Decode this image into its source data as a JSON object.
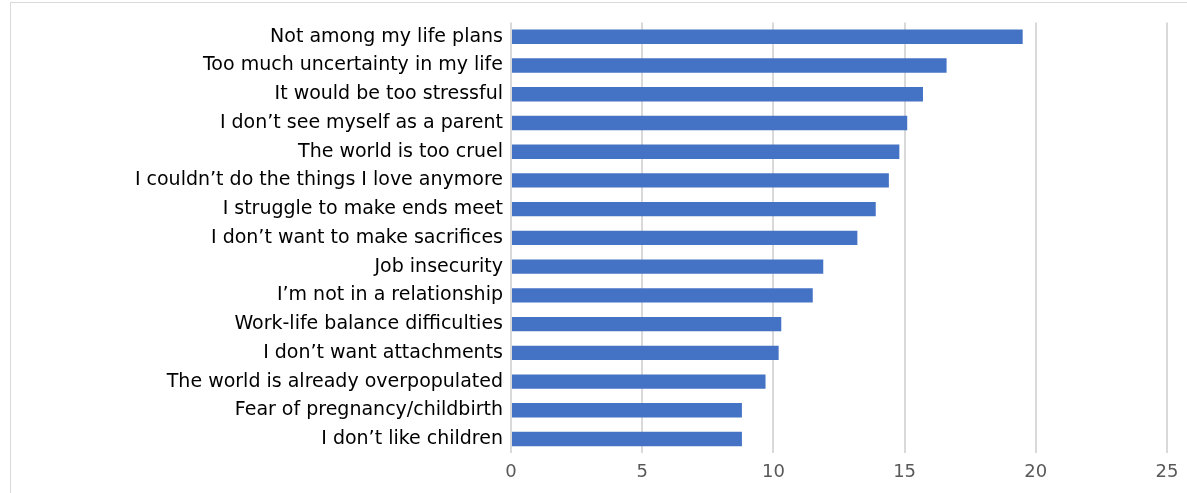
{
  "chart_data": {
    "type": "bar",
    "orientation": "horizontal",
    "categories": [
      "Not among my life plans",
      "Too much uncertainty in my life",
      "It would be too stressful",
      "I don’t see myself as a parent",
      "The world is too cruel",
      "I couldn’t do the things I love anymore",
      "I struggle to make ends meet",
      "I don’t want to make sacrifices",
      "Job insecurity",
      "I’m not in a relationship",
      "Work-life balance difficulties",
      "I don’t want attachments",
      "The world is already overpopulated",
      "Fear of pregnancy/childbirth",
      "I don’t like children"
    ],
    "values": [
      19.5,
      16.6,
      15.7,
      15.1,
      14.8,
      14.4,
      13.9,
      13.2,
      11.9,
      11.5,
      10.3,
      10.2,
      9.7,
      8.8,
      8.8
    ],
    "color": "#4472c4",
    "xlim": [
      0,
      25
    ],
    "xticks": [
      0,
      5,
      10,
      15,
      20,
      25
    ],
    "grid": "x",
    "legend": false
  }
}
